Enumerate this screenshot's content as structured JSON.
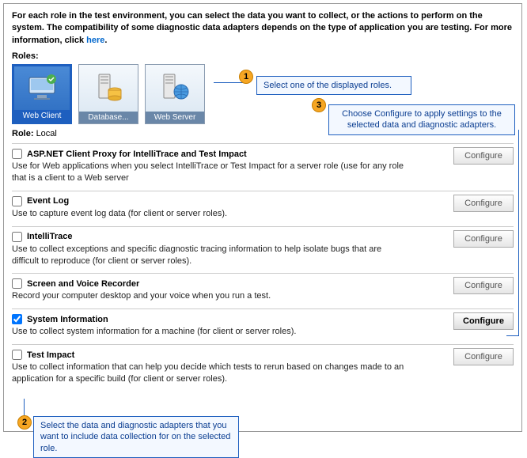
{
  "intro": {
    "text_a": "For each role in the test environment, you can select the data you want to collect, or the actions to perform on the system. The compatibility of some diagnostic data adapters depends on the type of application you are testing. For more information, click ",
    "link": "here",
    "text_b": "."
  },
  "labels": {
    "roles": "Roles:",
    "role": "Role:",
    "configure": "Configure"
  },
  "role_value": "Local",
  "roles": [
    {
      "label": "Web Client",
      "selected": true
    },
    {
      "label": "Database...",
      "selected": false
    },
    {
      "label": "Web Server",
      "selected": false
    }
  ],
  "adapters": [
    {
      "title": "ASP.NET Client Proxy for IntelliTrace and Test Impact",
      "desc": "Use for Web applications when you select IntelliTrace or Test Impact for a server role (use for any role that is a client to a Web server",
      "checked": false,
      "active": false
    },
    {
      "title": "Event Log",
      "desc": "Use to capture event log data (for client or server roles).",
      "checked": false,
      "active": false
    },
    {
      "title": "IntelliTrace",
      "desc": "Use to collect exceptions and specific diagnostic tracing information to help isolate bugs that are difficult to reproduce (for client or server roles).",
      "checked": false,
      "active": false
    },
    {
      "title": "Screen and Voice Recorder",
      "desc": "Record your computer desktop and your voice when you run a test.",
      "checked": false,
      "active": false
    },
    {
      "title": "System Information",
      "desc": "Use to collect system information for a machine (for client or server roles).",
      "checked": true,
      "active": true
    },
    {
      "title": "Test Impact",
      "desc": "Use to collect information that can help you decide which tests to rerun based on changes made to an application for a specific build (for client or server roles).",
      "checked": false,
      "active": false
    }
  ],
  "callouts": {
    "c1": "Select one of the displayed roles.",
    "c2": "Select the data and diagnostic adapters that you want to include data collection for on the selected role.",
    "c3": "Choose Configure to apply settings to the selected data and diagnostic adapters."
  },
  "colors": {
    "accent": "#1e5fbf",
    "callout_bg": "#f3f8ff",
    "badge": "#f6a623"
  }
}
